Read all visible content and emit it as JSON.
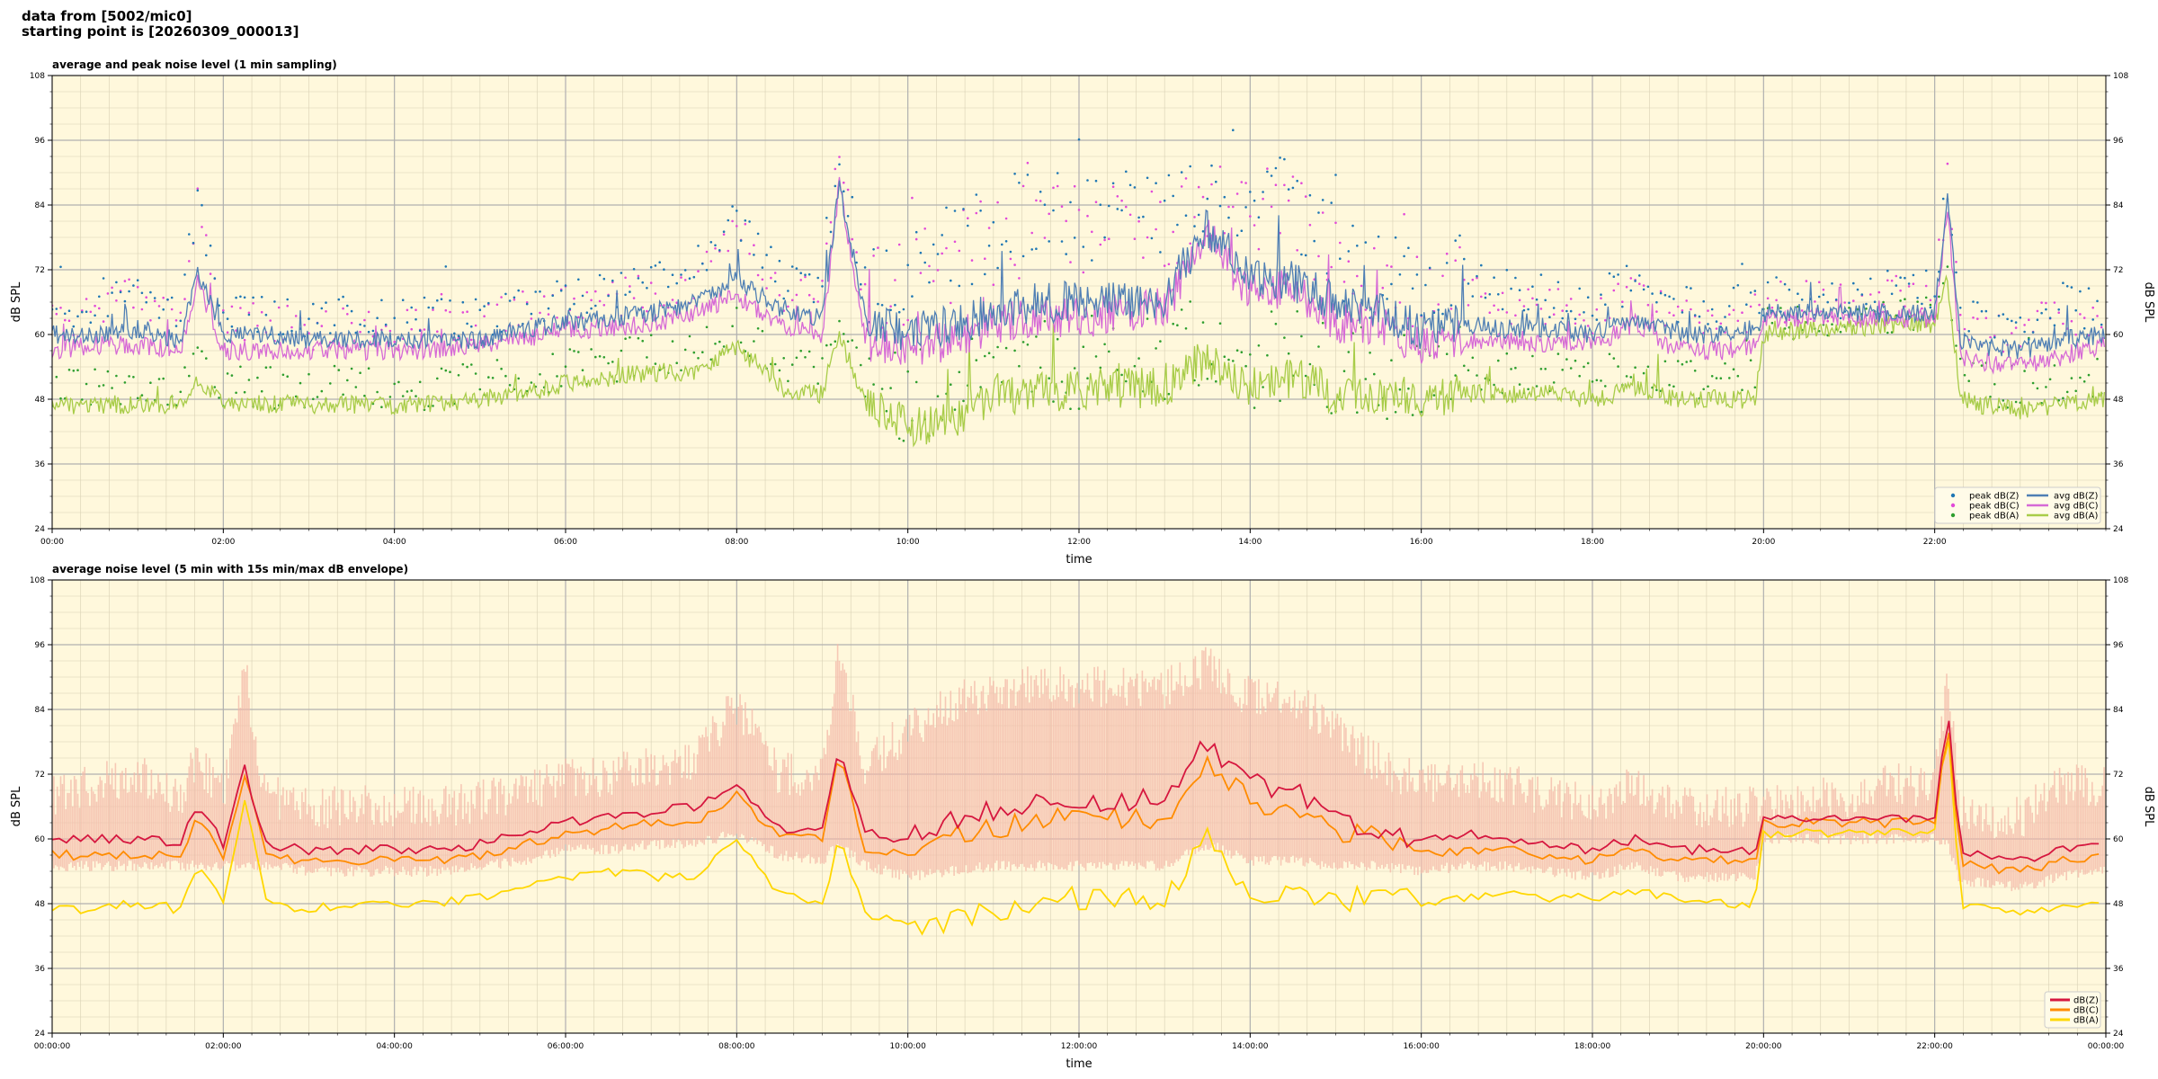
{
  "header": {
    "line1": "data from [5002/mic0]",
    "line2": "starting point is [20260309_000013]"
  },
  "colors": {
    "plot_bg": "#fff8dc",
    "peak_z": "#1f77b4",
    "peak_c": "#e24ad8",
    "peak_a": "#2e9e2e",
    "avg_z": "#4f7fb4",
    "avg_c": "#d66ad6",
    "avg_a": "#a8cc48",
    "db_z": "#d6173f",
    "db_c": "#ff8c00",
    "db_a": "#ffd700",
    "envelope": "#f4b8a8"
  },
  "chart_data": [
    {
      "type": "line",
      "title": "average and peak noise level (1 min sampling)",
      "xlabel": "time",
      "ylabel": "dB SPL",
      "ylim": [
        24,
        108
      ],
      "yticks": [
        24,
        36,
        48,
        60,
        72,
        84,
        96,
        108
      ],
      "xlim": [
        0,
        24
      ],
      "x_unit": "hours from 00:00",
      "xticks": [
        0,
        2,
        4,
        6,
        8,
        10,
        12,
        14,
        16,
        18,
        20,
        22
      ],
      "xtick_labels": [
        "00:00",
        "02:00",
        "04:00",
        "06:00",
        "08:00",
        "10:00",
        "12:00",
        "14:00",
        "16:00",
        "18:00",
        "20:00",
        "22:00"
      ],
      "grid": true,
      "legend_position": "bottom-right",
      "legend": [
        "peak dB(Z)",
        "peak dB(C)",
        "peak dB(A)",
        "avg dB(Z)",
        "avg dB(C)",
        "avg dB(A)"
      ],
      "x": [
        0,
        0.5,
        1,
        1.5,
        1.7,
        2,
        2.25,
        2.5,
        3,
        3.5,
        4,
        4.5,
        5,
        5.5,
        6,
        6.5,
        7,
        7.5,
        8,
        8.5,
        9,
        9.2,
        9.5,
        10,
        10.5,
        11,
        11.5,
        12,
        12.5,
        13,
        13.5,
        14,
        14.5,
        15,
        15.5,
        16,
        16.5,
        17,
        17.5,
        18,
        18.5,
        19,
        19.5,
        19.9,
        20,
        20.5,
        21,
        21.5,
        22,
        22.15,
        22.3,
        22.5,
        23,
        23.5,
        24
      ],
      "series": [
        {
          "name": "avg dB(Z)",
          "values": [
            60,
            60,
            61,
            59,
            72,
            60,
            60,
            60,
            59,
            59,
            59,
            59,
            59,
            61,
            62,
            63,
            64,
            66,
            70,
            65,
            63,
            88,
            63,
            60,
            62,
            64,
            66,
            66,
            66,
            67,
            80,
            70,
            70,
            66,
            64,
            61,
            62,
            61,
            61,
            60,
            63,
            60,
            60,
            61,
            64,
            64,
            64,
            64,
            64,
            85,
            59,
            58,
            57,
            59,
            60
          ]
        },
        {
          "name": "avg dB(C)",
          "values": [
            57,
            58,
            58,
            57,
            70,
            57,
            57,
            57,
            57,
            57,
            57,
            57,
            58,
            59,
            61,
            61,
            62,
            64,
            67,
            62,
            60,
            88,
            59,
            57,
            59,
            62,
            63,
            63,
            64,
            65,
            78,
            68,
            68,
            62,
            62,
            58,
            59,
            59,
            58,
            58,
            62,
            57,
            57,
            58,
            63,
            63,
            63,
            63,
            63,
            83,
            56,
            55,
            54,
            56,
            58
          ]
        },
        {
          "name": "avg dB(A)",
          "values": [
            47,
            47,
            47,
            47,
            52,
            47,
            47,
            47,
            47,
            47,
            47,
            47,
            48,
            49,
            51,
            52,
            53,
            53,
            58,
            50,
            49,
            60,
            47,
            43,
            44,
            49,
            49,
            50,
            50,
            50,
            56,
            50,
            52,
            49,
            49,
            48,
            49,
            49,
            49,
            48,
            50,
            48,
            48,
            48,
            60,
            61,
            61,
            62,
            62,
            70,
            48,
            47,
            46,
            47,
            48
          ]
        },
        {
          "name": "peak dB(Z)",
          "values": [
            64,
            66,
            70,
            64,
            86,
            64,
            64,
            64,
            63,
            63,
            63,
            63,
            63,
            65,
            67,
            68,
            70,
            72,
            82,
            70,
            70,
            94,
            69,
            72,
            76,
            80,
            82,
            82,
            82,
            82,
            88,
            84,
            84,
            76,
            70,
            68,
            70,
            68,
            67,
            66,
            70,
            65,
            64,
            66,
            67,
            67,
            67,
            68,
            68,
            89,
            63,
            62,
            62,
            66,
            64
          ]
        },
        {
          "name": "peak dB(C)",
          "values": [
            62,
            64,
            67,
            62,
            84,
            62,
            62,
            62,
            61,
            61,
            61,
            61,
            62,
            64,
            66,
            66,
            68,
            70,
            80,
            68,
            68,
            93,
            67,
            70,
            74,
            78,
            80,
            80,
            80,
            80,
            86,
            82,
            82,
            74,
            68,
            66,
            68,
            66,
            65,
            64,
            68,
            63,
            62,
            64,
            66,
            66,
            66,
            67,
            67,
            88,
            61,
            60,
            60,
            64,
            62
          ]
        },
        {
          "name": "peak dB(A)",
          "values": [
            50,
            50,
            50,
            50,
            56,
            50,
            50,
            50,
            50,
            50,
            50,
            50,
            51,
            52,
            54,
            55,
            56,
            56,
            62,
            54,
            53,
            64,
            51,
            48,
            50,
            54,
            54,
            55,
            55,
            55,
            60,
            55,
            56,
            53,
            53,
            52,
            53,
            53,
            53,
            52,
            54,
            52,
            52,
            52,
            62,
            63,
            63,
            64,
            64,
            72,
            52,
            51,
            50,
            51,
            52
          ]
        }
      ]
    },
    {
      "type": "line",
      "title": "average noise level (5 min with 15s min/max dB envelope)",
      "xlabel": "time",
      "ylabel": "dB SPL",
      "ylim": [
        24,
        108
      ],
      "yticks": [
        24,
        36,
        48,
        60,
        72,
        84,
        96,
        108
      ],
      "xlim": [
        0,
        24
      ],
      "x_unit": "hours from 00:00:00",
      "xticks": [
        0,
        2,
        4,
        6,
        8,
        10,
        12,
        14,
        16,
        18,
        20,
        22,
        24
      ],
      "xtick_labels": [
        "00:00:00",
        "02:00:00",
        "04:00:00",
        "06:00:00",
        "08:00:00",
        "10:00:00",
        "12:00:00",
        "14:00:00",
        "16:00:00",
        "18:00:00",
        "20:00:00",
        "22:00:00",
        "00:00:00"
      ],
      "grid": true,
      "legend_position": "bottom-right",
      "legend": [
        "dB(Z)",
        "dB(C)",
        "dB(A)"
      ],
      "x": [
        0,
        0.5,
        1,
        1.5,
        1.7,
        2,
        2.25,
        2.5,
        3,
        3.5,
        4,
        4.5,
        5,
        5.5,
        6,
        6.5,
        7,
        7.5,
        8,
        8.5,
        9,
        9.2,
        9.5,
        10,
        10.5,
        11,
        11.5,
        12,
        12.5,
        13,
        13.5,
        14,
        14.5,
        15,
        15.5,
        16,
        16.5,
        17,
        17.5,
        18,
        18.5,
        19,
        19.5,
        19.9,
        20,
        20.5,
        21,
        21.5,
        22,
        22.15,
        22.3,
        22.5,
        23,
        23.5,
        24
      ],
      "series": [
        {
          "name": "dB(Z)",
          "values": [
            60,
            60,
            60,
            59,
            67,
            59,
            73,
            59,
            58,
            58,
            58,
            58,
            59,
            61,
            63,
            64,
            65,
            66,
            70,
            62,
            62,
            77,
            61,
            60,
            63,
            65,
            66,
            67,
            67,
            67,
            78,
            70,
            69,
            64,
            62,
            60,
            61,
            60,
            59,
            58,
            60,
            58,
            58,
            58,
            64,
            64,
            64,
            64,
            64,
            84,
            58,
            57,
            56,
            58,
            59
          ]
        },
        {
          "name": "dB(C)",
          "values": [
            57,
            57,
            57,
            57,
            64,
            57,
            72,
            57,
            56,
            56,
            56,
            56,
            57,
            59,
            61,
            62,
            63,
            63,
            68,
            60,
            60,
            76,
            58,
            57,
            60,
            62,
            63,
            64,
            64,
            64,
            75,
            67,
            66,
            61,
            60,
            57,
            58,
            58,
            57,
            56,
            58,
            56,
            56,
            56,
            63,
            63,
            63,
            63,
            63,
            83,
            55,
            55,
            54,
            56,
            57
          ]
        },
        {
          "name": "dB(A)",
          "values": [
            47,
            47,
            48,
            47,
            55,
            48,
            68,
            48,
            47,
            48,
            48,
            48,
            49,
            51,
            53,
            54,
            53,
            53,
            60,
            50,
            48,
            60,
            46,
            44,
            45,
            47,
            48,
            49,
            49,
            49,
            60,
            50,
            51,
            48,
            50,
            48,
            49,
            50,
            49,
            49,
            50,
            49,
            48,
            48,
            61,
            61,
            61,
            61,
            61,
            82,
            48,
            47,
            46,
            47,
            48
          ]
        },
        {
          "name": "envelope max",
          "values": [
            68,
            70,
            72,
            68,
            75,
            68,
            91,
            68,
            66,
            66,
            66,
            66,
            67,
            69,
            71,
            72,
            73,
            75,
            85,
            72,
            72,
            95,
            74,
            80,
            85,
            88,
            88,
            88,
            88,
            88,
            92,
            86,
            86,
            80,
            74,
            70,
            72,
            70,
            68,
            66,
            70,
            66,
            66,
            66,
            66,
            67,
            68,
            70,
            70,
            90,
            64,
            64,
            64,
            70,
            70
          ]
        },
        {
          "name": "envelope min",
          "values": [
            56,
            56,
            56,
            56,
            56,
            56,
            56,
            56,
            55,
            55,
            55,
            55,
            56,
            57,
            59,
            59,
            60,
            60,
            62,
            58,
            57,
            60,
            56,
            54,
            55,
            56,
            56,
            56,
            56,
            56,
            60,
            57,
            57,
            56,
            56,
            55,
            56,
            56,
            55,
            54,
            56,
            54,
            54,
            54,
            61,
            61,
            61,
            61,
            61,
            60,
            53,
            53,
            52,
            54,
            55
          ]
        }
      ]
    }
  ]
}
